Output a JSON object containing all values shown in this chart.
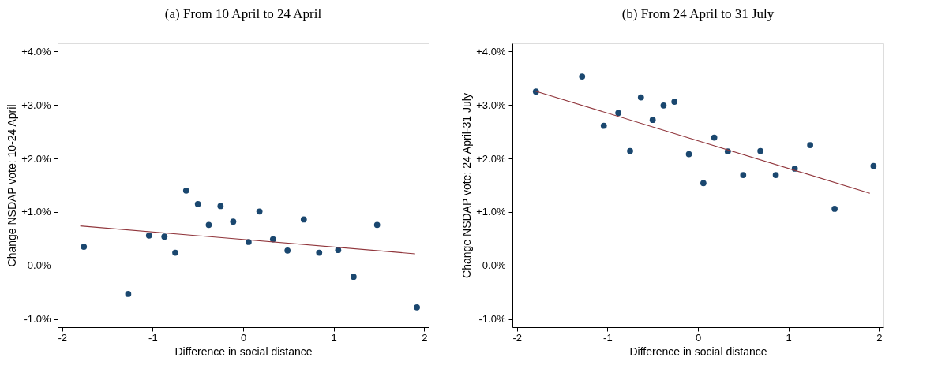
{
  "chart_data": [
    {
      "type": "scatter",
      "title": "(a) From 10 April to 24 April",
      "xlabel": "Difference in social distance",
      "ylabel": "Change NSDAP vote: 10-24 April",
      "xlim": [
        -2.05,
        2.05
      ],
      "ylim": [
        -1.15,
        4.15
      ],
      "xticks": [
        -2,
        -1,
        0,
        1,
        2
      ],
      "yticks": [
        {
          "value": -1,
          "label": "-1.0%"
        },
        {
          "value": 0,
          "label": "0.0%"
        },
        {
          "value": 1,
          "label": "+1.0%"
        },
        {
          "value": 2,
          "label": "+2.0%"
        },
        {
          "value": 3,
          "label": "+3.0%"
        },
        {
          "value": 4,
          "label": "+4.0%"
        }
      ],
      "grid": false,
      "series": [
        {
          "color": "#1a476f",
          "marker": "circle",
          "x": [
            -1.76,
            -1.27,
            -1.04,
            -0.87,
            -0.75,
            -0.63,
            -0.5,
            -0.38,
            -0.25,
            -0.11,
            0.06,
            0.18,
            0.33,
            0.49,
            0.67,
            0.84,
            1.05,
            1.22,
            1.48,
            1.92
          ],
          "values": [
            0.35,
            -0.53,
            0.56,
            0.54,
            0.24,
            1.4,
            1.15,
            0.76,
            1.11,
            0.82,
            0.44,
            1.01,
            0.49,
            0.28,
            0.86,
            0.24,
            0.29,
            -0.21,
            0.76,
            -0.78
          ]
        },
        {
          "type": "line",
          "color": "#90353b",
          "marker": "none",
          "line_style": "solid",
          "x": [
            -1.8,
            1.9
          ],
          "values": [
            0.74,
            0.22
          ]
        }
      ]
    },
    {
      "type": "scatter",
      "title": "(b) From 24 April to 31 July",
      "xlabel": "Difference in social distance",
      "ylabel": "Change NSDAP vote: 24 April-31 July",
      "xlim": [
        -2.05,
        2.05
      ],
      "ylim": [
        -1.15,
        4.15
      ],
      "xticks": [
        -2,
        -1,
        0,
        1,
        2
      ],
      "yticks": [
        {
          "value": -1,
          "label": "-1.0%"
        },
        {
          "value": 0,
          "label": "0.0%"
        },
        {
          "value": 1,
          "label": "+1.0%"
        },
        {
          "value": 2,
          "label": "+2.0%"
        },
        {
          "value": 3,
          "label": "+3.0%"
        },
        {
          "value": 4,
          "label": "+4.0%"
        }
      ],
      "grid": false,
      "series": [
        {
          "color": "#1a476f",
          "marker": "circle",
          "x": [
            -1.79,
            -1.28,
            -1.04,
            -0.88,
            -0.75,
            -0.63,
            -0.5,
            -0.38,
            -0.26,
            -0.1,
            0.06,
            0.18,
            0.33,
            0.5,
            0.69,
            0.86,
            1.07,
            1.24,
            1.51,
            1.94
          ],
          "values": [
            3.25,
            3.53,
            2.61,
            2.85,
            2.14,
            3.14,
            2.72,
            2.99,
            3.06,
            2.08,
            1.54,
            2.39,
            2.13,
            1.69,
            2.14,
            1.69,
            1.81,
            2.25,
            1.06,
            1.86
          ]
        },
        {
          "type": "line",
          "color": "#90353b",
          "marker": "none",
          "line_style": "solid",
          "x": [
            -1.8,
            1.9
          ],
          "values": [
            3.26,
            1.35
          ]
        }
      ]
    }
  ]
}
